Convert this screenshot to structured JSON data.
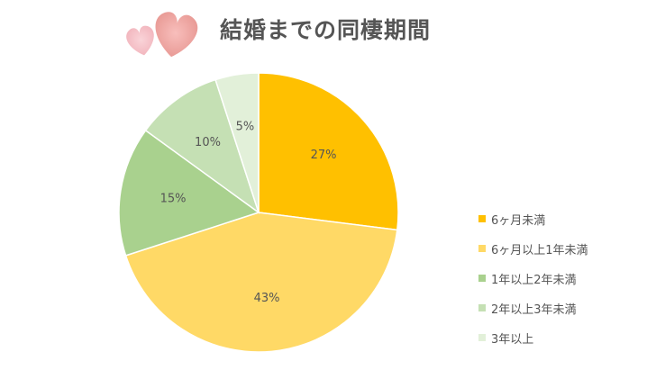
{
  "chart_data": {
    "type": "pie",
    "title": "結婚までの同棲期間",
    "categories": [
      "6ヶ月未満",
      "6ヶ月以上1年未満",
      "1年以上2年未満",
      "2年以上3年未満",
      "3年以上"
    ],
    "values": [
      27,
      43,
      15,
      10,
      5
    ],
    "data_labels": [
      "27%",
      "43%",
      "15%",
      "10%",
      "5%"
    ],
    "colors": [
      "#FFC000",
      "#FFD966",
      "#A9D18E",
      "#C5E0B4",
      "#E2F0D9"
    ],
    "legend_position": "right",
    "start_angle": "12 o'clock",
    "direction": "clockwise"
  },
  "decoration": {
    "icon": "hearts-icon"
  }
}
